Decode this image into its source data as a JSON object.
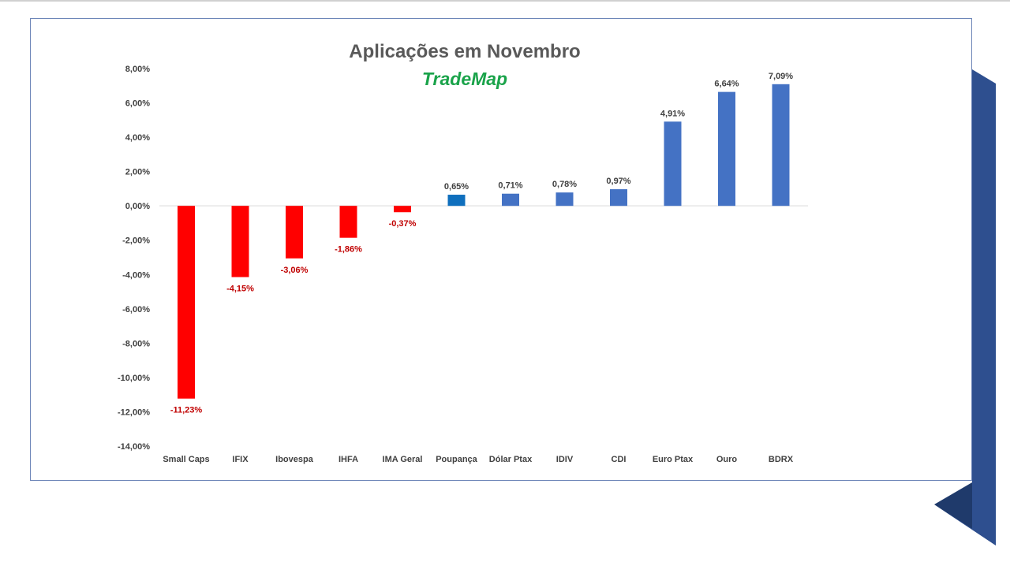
{
  "chart_data": {
    "type": "bar",
    "title": "Aplicações em Novembro",
    "subtitle": "TradeMap",
    "xlabel": "",
    "ylabel": "",
    "ylim": [
      -14,
      8
    ],
    "yticks": [
      8,
      6,
      4,
      2,
      0,
      -2,
      -4,
      -6,
      -8,
      -10,
      -12,
      -14
    ],
    "ytick_labels": [
      "8,00%",
      "6,00%",
      "4,00%",
      "2,00%",
      "0,00%",
      "-2,00%",
      "-4,00%",
      "-6,00%",
      "-8,00%",
      "-10,00%",
      "-12,00%",
      "-14,00%"
    ],
    "grid": false,
    "categories": [
      "Small Caps",
      "IFIX",
      "Ibovespa",
      "IHFA",
      "IMA Geral",
      "Poupança",
      "Dólar Ptax",
      "IDIV",
      "CDI",
      "Euro Ptax",
      "Ouro",
      "BDRX"
    ],
    "values": [
      -11.23,
      -4.15,
      -3.06,
      -1.86,
      -0.37,
      0.65,
      0.71,
      0.78,
      0.97,
      4.91,
      6.64,
      7.09
    ],
    "value_labels": [
      "-11,23%",
      "-4,15%",
      "-3,06%",
      "-1,86%",
      "-0,37%",
      "0,65%",
      "0,71%",
      "0,78%",
      "0,97%",
      "4,91%",
      "6,64%",
      "7,09%"
    ],
    "colors": {
      "negative": "#ff0000",
      "positive": "#4472c4",
      "highlight": "#0f6fbd",
      "negative_label": "#c00000",
      "positive_label": "#404040"
    },
    "highlight_index": 5
  }
}
